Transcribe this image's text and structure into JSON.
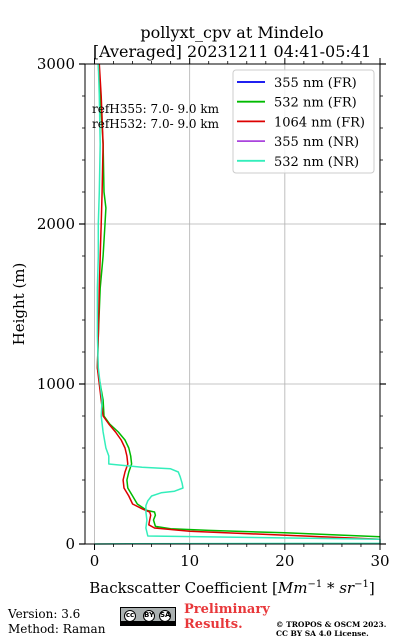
{
  "chart_data": {
    "type": "line",
    "title": "pollyxt_cpv at Mindelo",
    "subtitle": "[Averaged] 20231211 04:41-05:41",
    "xlabel": "Backscatter Coefficient [Mm⁻¹ * sr⁻¹]",
    "ylabel": "Height (m)",
    "xlim": [
      -1,
      30
    ],
    "ylim": [
      0,
      3000
    ],
    "xticks": [
      "0",
      "10",
      "20",
      "30"
    ],
    "yticks": [
      "0",
      "1000",
      "2000",
      "3000"
    ],
    "grid": true,
    "legend_position": "top-right",
    "annotations": [
      "refH355:  7.0- 9.0 km",
      "refH532:  7.0- 9.0 km"
    ],
    "series": [
      {
        "name": "355 nm (FR)",
        "color": "#0000ee",
        "points": []
      },
      {
        "name": "532 nm (FR)",
        "color": "#00bb00",
        "points": [
          [
            0.4,
            3000
          ],
          [
            0.6,
            2800
          ],
          [
            0.9,
            2500
          ],
          [
            1.0,
            2200
          ],
          [
            1.2,
            2100
          ],
          [
            1.1,
            2000
          ],
          [
            0.9,
            1800
          ],
          [
            0.6,
            1600
          ],
          [
            0.4,
            1300
          ],
          [
            0.3,
            1100
          ],
          [
            0.6,
            1000
          ],
          [
            0.9,
            900
          ],
          [
            1.0,
            800
          ],
          [
            1.6,
            750
          ],
          [
            2.5,
            700
          ],
          [
            3.2,
            650
          ],
          [
            3.6,
            600
          ],
          [
            3.8,
            550
          ],
          [
            3.9,
            500
          ],
          [
            3.6,
            450
          ],
          [
            3.4,
            400
          ],
          [
            3.5,
            350
          ],
          [
            4.0,
            300
          ],
          [
            4.5,
            250
          ],
          [
            5.5,
            210
          ],
          [
            6.3,
            200
          ],
          [
            6.4,
            180
          ],
          [
            6.2,
            150
          ],
          [
            6.4,
            110
          ],
          [
            8,
            95
          ],
          [
            12,
            85
          ],
          [
            20,
            70
          ],
          [
            30,
            45
          ]
        ]
      },
      {
        "name": "1064 nm (FR)",
        "color": "#dd0000",
        "points": [
          [
            0.5,
            3000
          ],
          [
            0.7,
            2800
          ],
          [
            0.9,
            2500
          ],
          [
            0.8,
            2200
          ],
          [
            0.7,
            2000
          ],
          [
            0.6,
            1800
          ],
          [
            0.5,
            1600
          ],
          [
            0.4,
            1300
          ],
          [
            0.3,
            1100
          ],
          [
            0.5,
            1000
          ],
          [
            0.7,
            900
          ],
          [
            0.9,
            800
          ],
          [
            1.5,
            750
          ],
          [
            2.2,
            700
          ],
          [
            2.8,
            650
          ],
          [
            3.2,
            600
          ],
          [
            3.4,
            550
          ],
          [
            3.5,
            500
          ],
          [
            3.2,
            450
          ],
          [
            3.0,
            400
          ],
          [
            3.1,
            350
          ],
          [
            3.6,
            300
          ],
          [
            4.0,
            250
          ],
          [
            5.0,
            220
          ],
          [
            5.8,
            200
          ],
          [
            5.9,
            180
          ],
          [
            5.8,
            150
          ],
          [
            5.7,
            120
          ],
          [
            6.3,
            100
          ],
          [
            10,
            80
          ],
          [
            18,
            60
          ],
          [
            30,
            30
          ]
        ]
      },
      {
        "name": "355 nm (NR)",
        "color": "#aa44dd",
        "points": []
      },
      {
        "name": "532 nm (NR)",
        "color": "#33eebb",
        "points": [
          [
            0.4,
            3000
          ],
          [
            0.5,
            2800
          ],
          [
            0.6,
            2500
          ],
          [
            0.5,
            2200
          ],
          [
            0.4,
            2000
          ],
          [
            0.4,
            1800
          ],
          [
            0.3,
            1600
          ],
          [
            0.3,
            1300
          ],
          [
            0.4,
            1100
          ],
          [
            0.6,
            1000
          ],
          [
            0.8,
            900
          ],
          [
            0.7,
            800
          ],
          [
            0.9,
            700
          ],
          [
            1.2,
            600
          ],
          [
            1.5,
            550
          ],
          [
            1.5,
            500
          ],
          [
            5,
            480
          ],
          [
            8,
            470
          ],
          [
            8.8,
            450
          ],
          [
            9.0,
            420
          ],
          [
            9.2,
            380
          ],
          [
            9.3,
            350
          ],
          [
            8.4,
            330
          ],
          [
            7.0,
            320
          ],
          [
            6.0,
            300
          ],
          [
            5.6,
            270
          ],
          [
            5.4,
            240
          ],
          [
            5.4,
            200
          ],
          [
            5.5,
            150
          ],
          [
            5.4,
            100
          ],
          [
            5.6,
            50
          ],
          [
            30,
            30
          ],
          [
            30,
            5
          ],
          [
            4,
            2
          ],
          [
            0,
            0
          ]
        ]
      }
    ]
  },
  "footer": {
    "version": "Version: 3.6",
    "method": "Method: Raman",
    "preliminary_line1": "Preliminary",
    "preliminary_line2": "Results.",
    "copyright_line1": "© TROPOS & OSCM 2023.",
    "copyright_line2": "CC BY SA 4.0 License.",
    "license_logo_text": [
      "cc",
      "BY",
      "SA"
    ]
  }
}
